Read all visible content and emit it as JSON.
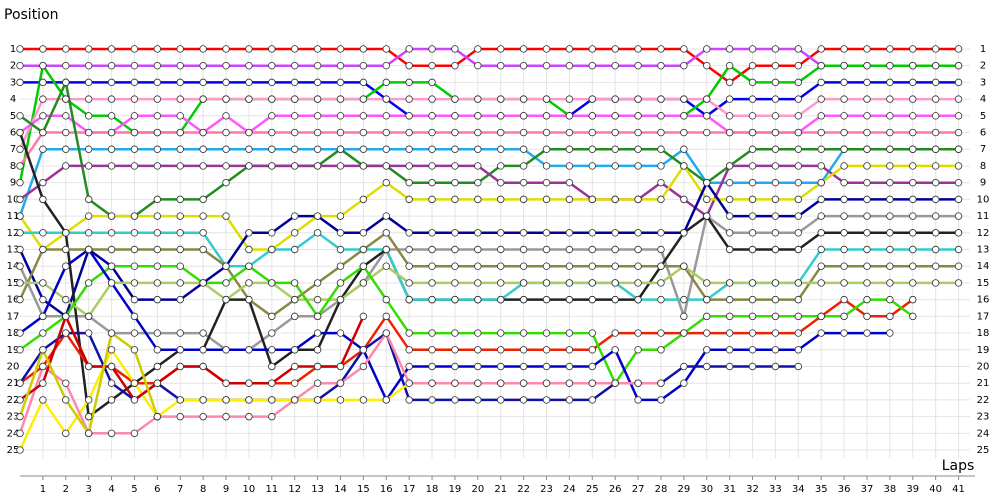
{
  "chart_data": {
    "type": "line",
    "ylabel": "Position",
    "xlabel": "Laps",
    "x": [
      0,
      1,
      2,
      3,
      4,
      5,
      6,
      7,
      8,
      9,
      10,
      11,
      12,
      13,
      14,
      15,
      16,
      17,
      18,
      19,
      20,
      21,
      22,
      23,
      24,
      25,
      26,
      27,
      28,
      29,
      30,
      31,
      32,
      33,
      34,
      35,
      36,
      37,
      38,
      39,
      40,
      41
    ],
    "xlim": [
      0,
      41.5
    ],
    "ylim": [
      0.5,
      25.5
    ],
    "y_inverted": true,
    "grid": true,
    "xticks": [
      1,
      2,
      3,
      4,
      5,
      6,
      7,
      8,
      9,
      10,
      11,
      12,
      13,
      14,
      15,
      16,
      17,
      18,
      19,
      20,
      21,
      22,
      23,
      24,
      25,
      26,
      27,
      28,
      29,
      30,
      31,
      32,
      33,
      34,
      35,
      36,
      37,
      38,
      39,
      40,
      41
    ],
    "yticks": [
      1,
      2,
      3,
      4,
      5,
      6,
      7,
      8,
      9,
      10,
      11,
      12,
      13,
      14,
      15,
      16,
      17,
      18,
      19,
      20,
      21,
      22,
      23,
      24,
      25
    ],
    "series": [
      {
        "color": "#ff0000",
        "values": [
          1,
          1,
          1,
          1,
          1,
          1,
          1,
          1,
          1,
          1,
          1,
          1,
          1,
          1,
          1,
          1,
          1,
          2,
          2,
          2,
          1,
          1,
          1,
          1,
          1,
          1,
          1,
          1,
          1,
          1,
          2,
          3,
          2,
          2,
          2,
          1,
          1,
          1,
          1,
          1,
          1,
          1
        ]
      },
      {
        "color": "#cc44ff",
        "values": [
          2,
          2,
          2,
          2,
          2,
          2,
          2,
          2,
          2,
          2,
          2,
          2,
          2,
          2,
          2,
          2,
          2,
          1,
          1,
          1,
          2,
          2,
          2,
          2,
          2,
          2,
          2,
          2,
          2,
          2,
          1,
          1,
          1,
          1,
          1,
          2,
          2,
          2,
          2,
          2,
          2,
          2
        ]
      },
      {
        "color": "#0000ee",
        "values": [
          3,
          3,
          3,
          3,
          3,
          3,
          3,
          3,
          3,
          3,
          3,
          3,
          3,
          3,
          3,
          3,
          4,
          5,
          5,
          5,
          5,
          5,
          5,
          5,
          5,
          4,
          4,
          4,
          4,
          4,
          5,
          4,
          4,
          4,
          4,
          3,
          3,
          3,
          3,
          3,
          3,
          3
        ]
      },
      {
        "color": "#00cc00",
        "values": [
          9,
          2,
          4,
          5,
          5,
          6,
          6,
          6,
          4,
          4,
          4,
          4,
          4,
          4,
          4,
          4,
          3,
          3,
          3,
          4,
          4,
          4,
          4,
          4,
          5,
          5,
          5,
          5,
          5,
          5,
          4,
          2,
          3,
          3,
          3,
          2,
          2,
          2,
          2,
          2,
          2,
          2
        ]
      },
      {
        "color": "#ff99cc",
        "values": [
          7,
          4,
          4,
          4,
          4,
          4,
          4,
          4,
          4,
          4,
          4,
          4,
          4,
          4,
          4,
          4,
          4,
          4,
          4,
          4,
          4,
          4,
          4,
          4,
          4,
          4,
          4,
          4,
          4,
          4,
          4,
          5,
          5,
          5,
          5,
          4,
          4,
          4,
          4,
          4,
          4,
          4
        ]
      },
      {
        "color": "#ff55ff",
        "values": [
          6,
          5,
          5,
          6,
          6,
          5,
          5,
          5,
          6,
          5,
          6,
          5,
          5,
          5,
          5,
          5,
          5,
          5,
          5,
          5,
          5,
          5,
          5,
          5,
          5,
          5,
          5,
          5,
          5,
          5,
          5,
          6,
          6,
          6,
          6,
          5,
          5,
          5,
          5,
          5,
          5,
          5
        ]
      },
      {
        "color": "#ff77aa",
        "values": [
          8,
          6,
          6,
          6,
          6,
          6,
          6,
          6,
          6,
          6,
          6,
          6,
          6,
          6,
          6,
          6,
          6,
          6,
          6,
          6,
          6,
          6,
          6,
          6,
          6,
          6,
          6,
          6,
          6,
          6,
          6,
          6,
          6,
          6,
          6,
          6,
          6,
          6,
          6,
          6,
          6,
          6
        ]
      },
      {
        "color": "#22aaee",
        "values": [
          11,
          7,
          7,
          7,
          7,
          7,
          7,
          7,
          7,
          7,
          7,
          7,
          7,
          7,
          7,
          7,
          7,
          7,
          7,
          7,
          7,
          7,
          7,
          8,
          8,
          8,
          8,
          8,
          8,
          7,
          9,
          9,
          9,
          9,
          9,
          9,
          7,
          7,
          7,
          7,
          7,
          7
        ]
      },
      {
        "color": "#228b22",
        "values": [
          5,
          6,
          3,
          10,
          11,
          11,
          10,
          10,
          10,
          9,
          8,
          8,
          8,
          8,
          7,
          8,
          8,
          9,
          9,
          9,
          9,
          8,
          8,
          7,
          7,
          7,
          7,
          7,
          7,
          8,
          9,
          8,
          7,
          7,
          7,
          7,
          7,
          7,
          7,
          7,
          7,
          7
        ]
      },
      {
        "color": "#993399",
        "values": [
          10,
          9,
          8,
          8,
          8,
          8,
          8,
          8,
          8,
          8,
          8,
          8,
          8,
          8,
          8,
          8,
          8,
          8,
          8,
          8,
          8,
          9,
          9,
          9,
          9,
          10,
          10,
          10,
          9,
          10,
          11,
          8,
          8,
          8,
          8,
          8,
          9,
          9,
          9,
          9,
          9,
          9
        ]
      },
      {
        "color": "#dddd00",
        "values": [
          11,
          13,
          12,
          11,
          11,
          11,
          11,
          11,
          11,
          11,
          13,
          13,
          12,
          11,
          11,
          10,
          9,
          10,
          10,
          10,
          10,
          10,
          10,
          10,
          10,
          10,
          10,
          10,
          10,
          8,
          10,
          10,
          10,
          10,
          10,
          9,
          8,
          8,
          8,
          8,
          8,
          8
        ]
      },
      {
        "color": "#000099",
        "values": [
          13,
          16,
          17,
          13,
          14,
          16,
          16,
          16,
          15,
          14,
          12,
          12,
          11,
          11,
          12,
          12,
          11,
          12,
          12,
          12,
          12,
          12,
          12,
          12,
          12,
          12,
          12,
          12,
          12,
          12,
          9,
          11,
          11,
          11,
          11,
          10,
          10,
          10,
          10,
          10,
          10,
          10
        ]
      },
      {
        "color": "#999999",
        "values": [
          14,
          17,
          17,
          17,
          18,
          18,
          18,
          18,
          18,
          19,
          19,
          18,
          17,
          17,
          16,
          15,
          13,
          13,
          13,
          13,
          13,
          13,
          13,
          13,
          13,
          13,
          13,
          13,
          13,
          17,
          11,
          12,
          12,
          12,
          12,
          11,
          11,
          11,
          11,
          11,
          11,
          11
        ]
      },
      {
        "color": "#222222",
        "values": [
          6,
          10,
          12,
          23,
          22,
          21,
          20,
          19,
          19,
          16,
          16,
          20,
          19,
          19,
          16,
          14,
          13,
          16,
          16,
          16,
          16,
          16,
          16,
          16,
          16,
          16,
          16,
          16,
          14,
          12,
          11,
          13,
          13,
          13,
          13,
          12,
          12,
          12,
          12,
          12,
          12,
          12
        ]
      },
      {
        "color": "#33cccc",
        "values": [
          12,
          12,
          12,
          12,
          12,
          12,
          12,
          12,
          12,
          14,
          14,
          13,
          13,
          12,
          13,
          13,
          13,
          16,
          16,
          16,
          16,
          16,
          15,
          15,
          15,
          15,
          15,
          16,
          16,
          16,
          16,
          15,
          15,
          15,
          15,
          13,
          13,
          13,
          13,
          13,
          13,
          13
        ]
      },
      {
        "color": "#888844",
        "values": [
          16,
          13,
          13,
          13,
          13,
          13,
          13,
          13,
          13,
          14,
          16,
          17,
          16,
          15,
          14,
          13,
          12,
          14,
          14,
          14,
          14,
          14,
          14,
          14,
          14,
          14,
          14,
          14,
          14,
          14,
          16,
          16,
          16,
          16,
          16,
          14,
          14,
          14,
          14,
          14,
          14,
          14
        ]
      },
      {
        "color": "#aacc66",
        "values": [
          15,
          15,
          16,
          17,
          15,
          15,
          15,
          15,
          15,
          16,
          15,
          15,
          16,
          16,
          16,
          15,
          14,
          15,
          15,
          15,
          15,
          15,
          15,
          15,
          15,
          15,
          15,
          15,
          15,
          14,
          15,
          15,
          15,
          15,
          15,
          15,
          15,
          15,
          15,
          15,
          15,
          15
        ]
      },
      {
        "color": "#ee2200",
        "values": [
          21,
          20,
          18,
          20,
          20,
          21,
          21,
          20,
          20,
          21,
          21,
          21,
          21,
          20,
          20,
          19,
          17,
          19,
          19,
          19,
          19,
          19,
          19,
          19,
          19,
          19,
          18,
          18,
          18,
          18,
          18,
          18,
          18,
          18,
          18,
          17,
          16,
          17,
          17,
          16,
          null,
          null
        ]
      },
      {
        "color": "#33dd00",
        "values": [
          19,
          18,
          17,
          15,
          14,
          14,
          14,
          14,
          15,
          15,
          14,
          15,
          15,
          17,
          15,
          14,
          16,
          18,
          18,
          18,
          18,
          18,
          18,
          18,
          18,
          18,
          21,
          19,
          19,
          18,
          17,
          17,
          17,
          17,
          17,
          17,
          17,
          16,
          16,
          17,
          null,
          null
        ]
      },
      {
        "color": "#0000cc",
        "values": [
          18,
          17,
          14,
          13,
          15,
          17,
          19,
          19,
          19,
          19,
          19,
          19,
          19,
          18,
          18,
          19,
          22,
          20,
          20,
          20,
          20,
          20,
          20,
          20,
          20,
          20,
          19,
          22,
          22,
          21,
          19,
          19,
          19,
          19,
          19,
          18,
          18,
          18,
          18,
          null,
          null,
          null
        ]
      },
      {
        "color": "#1111aa",
        "values": [
          21,
          19,
          18,
          18,
          21,
          22,
          21,
          22,
          22,
          22,
          22,
          22,
          22,
          22,
          21,
          19,
          18,
          22,
          22,
          22,
          22,
          22,
          22,
          22,
          22,
          22,
          21,
          21,
          21,
          20,
          20,
          20,
          20,
          20,
          20,
          null,
          null,
          null,
          null,
          null,
          null,
          null
        ]
      },
      {
        "color": "#ffee00",
        "values": [
          25,
          22,
          24,
          22,
          19,
          21,
          23,
          22,
          22,
          22,
          22,
          22,
          22,
          22,
          22,
          22,
          22,
          21,
          21,
          21,
          21,
          21,
          21,
          21,
          21,
          21,
          21,
          21,
          21,
          null,
          null,
          null,
          null,
          null,
          null,
          null,
          null,
          null,
          null,
          null,
          null,
          null
        ]
      },
      {
        "color": "#ff88aa",
        "values": [
          24,
          20,
          21,
          24,
          24,
          24,
          23,
          23,
          23,
          23,
          23,
          23,
          22,
          21,
          21,
          20,
          18,
          21,
          21,
          21,
          21,
          21,
          21,
          21,
          21,
          21,
          21,
          21,
          21,
          null,
          null,
          null,
          null,
          null,
          null,
          null,
          null,
          null,
          null,
          null,
          null,
          null
        ]
      },
      {
        "color": "#cc0000",
        "values": [
          22,
          21,
          17,
          20,
          20,
          22,
          21,
          20,
          20,
          21,
          21,
          21,
          20,
          20,
          20,
          17,
          null,
          null,
          null,
          null,
          null,
          null,
          null,
          null,
          null,
          null,
          null,
          null,
          null,
          null,
          null,
          null,
          null,
          null,
          null,
          null,
          null,
          null,
          null,
          null,
          null,
          null
        ]
      },
      {
        "color": "#cccc00",
        "values": [
          23,
          19,
          22,
          24,
          18,
          19,
          23,
          null,
          null,
          null,
          null,
          null,
          null,
          null,
          null,
          null,
          null,
          null,
          null,
          null,
          null,
          null,
          null,
          null,
          null,
          null,
          null,
          null,
          null,
          null,
          null,
          null,
          null,
          null,
          null,
          null,
          null,
          null,
          null,
          null,
          null,
          null
        ]
      }
    ]
  }
}
